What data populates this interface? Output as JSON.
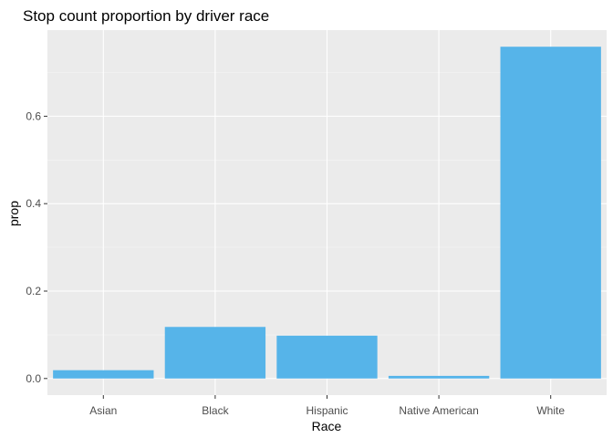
{
  "chart_data": {
    "type": "bar",
    "title": "Stop count proportion by driver race",
    "xlabel": "Race",
    "ylabel": "prop",
    "categories": [
      "Asian",
      "Black",
      "Hispanic",
      "Native American",
      "White"
    ],
    "values": [
      0.019,
      0.118,
      0.098,
      0.006,
      0.759
    ],
    "ylim": [
      -0.038,
      0.797
    ],
    "yticks": [
      0.0,
      0.2,
      0.4,
      0.6
    ],
    "ytick_labels": [
      "0.0",
      "0.2",
      "0.4",
      "0.6"
    ],
    "grid": true,
    "colors": {
      "bar": "#56B4E9",
      "panel": "#EBEBEB",
      "grid_major": "#FFFFFF",
      "grid_minor": "#F5F5F5",
      "tick_text": "#4D4D4D"
    }
  }
}
